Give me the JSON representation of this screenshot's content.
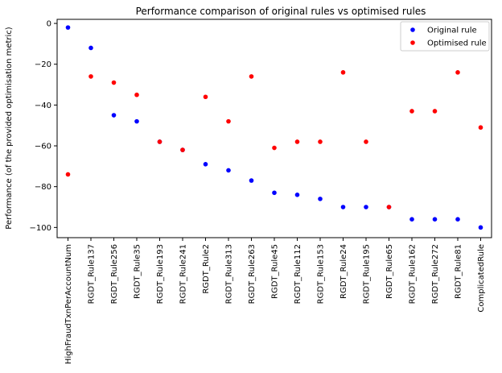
{
  "chart_data": {
    "type": "scatter",
    "title": "Performance comparison of original rules vs optimised rules",
    "xlabel": "",
    "ylabel": "Performance (of the provided optimisation metric)",
    "categories": [
      "HighFraudTxnPerAccountNum",
      "RGDT_Rule137",
      "RGDT_Rule256",
      "RGDT_Rule35",
      "RGDT_Rule193",
      "RGDT_Rule241",
      "RGDT_Rule2",
      "RGDT_Rule313",
      "RGDT_Rule263",
      "RGDT_Rule45",
      "RGDT_Rule112",
      "RGDT_Rule153",
      "RGDT_Rule24",
      "RGDT_Rule195",
      "RGDT_Rule65",
      "RGDT_Rule162",
      "RGDT_Rule272",
      "RGDT_Rule81",
      "ComplicatedRule"
    ],
    "series": [
      {
        "name": "Original rule",
        "color": "#0000ff",
        "values": [
          -2,
          -12,
          -45,
          -48,
          -58,
          -62,
          -69,
          -72,
          -77,
          -83,
          -84,
          -86,
          -90,
          -90,
          -90,
          -96,
          -96,
          -96,
          -100
        ]
      },
      {
        "name": "Optimised rule",
        "color": "#ff0000",
        "values": [
          -74,
          -26,
          -29,
          -35,
          -58,
          -62,
          -36,
          -48,
          -26,
          -61,
          -58,
          -58,
          -24,
          -58,
          -90,
          -43,
          -43,
          -24,
          -51
        ]
      }
    ],
    "yticks": [
      0,
      -20,
      -40,
      -60,
      -80,
      -100
    ],
    "ylim": [
      -105,
      2
    ],
    "grid": false,
    "legend": "top-right"
  }
}
